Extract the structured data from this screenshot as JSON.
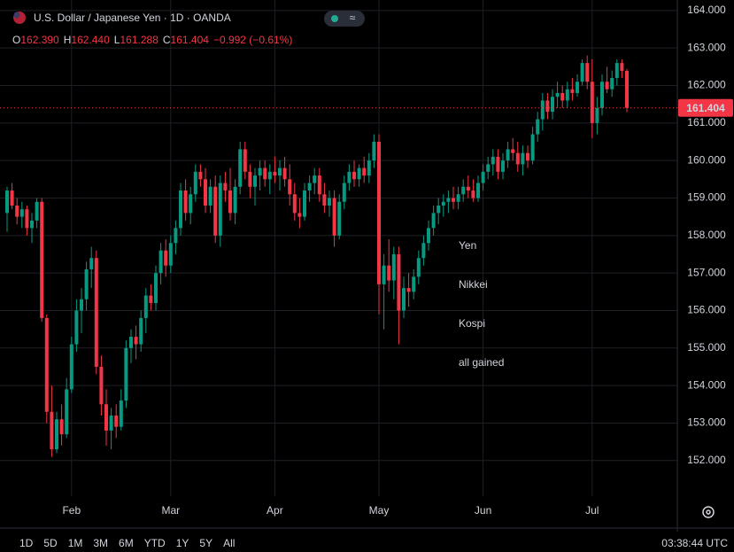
{
  "header": {
    "title": "U.S. Dollar / Japanese Yen · 1D · OANDA",
    "ohlc": [
      {
        "key": "O",
        "value": "162.390"
      },
      {
        "key": "H",
        "value": "162.440"
      },
      {
        "key": "L",
        "value": "161.288"
      },
      {
        "key": "C",
        "value": "161.404"
      }
    ],
    "change": "−0.992 (−0.61%)"
  },
  "chart_data": {
    "type": "candlestick",
    "up_color": "#089981",
    "down_color": "#f23645",
    "grid": true,
    "ylim": [
      151.05,
      164.28
    ],
    "yticks": [
      {
        "value": 152,
        "label": "152.000"
      },
      {
        "value": 153,
        "label": "153.000"
      },
      {
        "value": 154,
        "label": "154.000"
      },
      {
        "value": 155,
        "label": "155.000"
      },
      {
        "value": 156,
        "label": "156.000"
      },
      {
        "value": 157,
        "label": "157.000"
      },
      {
        "value": 158,
        "label": "158.000"
      },
      {
        "value": 159,
        "label": "159.000"
      },
      {
        "value": 160,
        "label": "160.000"
      },
      {
        "value": 161,
        "label": "161.000"
      },
      {
        "value": 162,
        "label": "162.000"
      },
      {
        "value": 163,
        "label": "163.000"
      },
      {
        "value": 164,
        "label": "164.000"
      }
    ],
    "last_price": {
      "value": 161.404,
      "label": "161.404"
    },
    "annotation": [
      "Yen",
      "Nikkei",
      "Kospi",
      "all gained"
    ],
    "annotation_color": "#e0211d",
    "categories": [
      null,
      null,
      null,
      null,
      null,
      null,
      null,
      null,
      null,
      null,
      null,
      null,
      null,
      "Feb",
      null,
      null,
      null,
      null,
      null,
      null,
      null,
      null,
      null,
      null,
      null,
      null,
      null,
      null,
      null,
      null,
      null,
      null,
      null,
      "Mar",
      null,
      null,
      null,
      null,
      null,
      null,
      null,
      null,
      null,
      null,
      null,
      null,
      null,
      null,
      null,
      null,
      null,
      null,
      null,
      null,
      "Apr",
      null,
      null,
      null,
      null,
      null,
      null,
      null,
      null,
      null,
      null,
      null,
      null,
      null,
      null,
      null,
      null,
      null,
      null,
      null,
      null,
      "May",
      null,
      null,
      null,
      null,
      null,
      null,
      null,
      null,
      null,
      null,
      null,
      null,
      null,
      null,
      null,
      null,
      null,
      null,
      null,
      null,
      "Jun",
      null,
      null,
      null,
      null,
      null,
      null,
      null,
      null,
      null,
      null,
      null,
      null,
      null,
      null,
      null,
      null,
      null,
      null,
      null,
      null,
      null,
      "Jul",
      null,
      null,
      null,
      null,
      null,
      null,
      null
    ],
    "open": [
      158.6,
      159.2,
      158.8,
      158.5,
      158.7,
      158.2,
      158.4,
      158.9,
      155.8,
      153.3,
      152.3,
      153.1,
      152.7,
      153.9,
      155.1,
      156.0,
      156.3,
      157.1,
      157.4,
      154.5,
      153.5,
      152.8,
      153.2,
      152.9,
      153.6,
      155.0,
      155.3,
      155.1,
      155.8,
      156.4,
      156.2,
      157.0,
      157.6,
      157.2,
      157.8,
      158.2,
      159.2,
      158.6,
      159.1,
      159.7,
      159.5,
      158.8,
      159.3,
      158.0,
      159.4,
      159.2,
      158.6,
      159.3,
      160.3,
      159.7,
      159.3,
      159.6,
      159.8,
      159.5,
      159.7,
      159.6,
      159.8,
      159.5,
      159.1,
      158.6,
      158.5,
      159.2,
      159.4,
      159.6,
      159.1,
      158.8,
      159.0,
      158.0,
      158.9,
      159.4,
      159.7,
      159.5,
      159.8,
      159.6,
      160.0,
      160.5,
      156.7,
      157.2,
      156.8,
      157.5,
      156.0,
      156.6,
      156.5,
      156.9,
      157.4,
      157.8,
      158.2,
      158.6,
      158.8,
      158.9,
      159.0,
      158.9,
      159.1,
      159.3,
      159.2,
      159.0,
      159.4,
      159.7,
      159.9,
      160.1,
      159.7,
      160.0,
      160.3,
      160.2,
      159.9,
      160.2,
      160.0,
      160.7,
      161.1,
      161.6,
      161.3,
      161.7,
      161.8,
      161.6,
      161.9,
      161.8,
      162.1,
      162.6,
      162.1,
      161.0,
      161.4,
      162.1,
      161.9,
      162.2,
      162.6,
      162.39
    ],
    "high": [
      159.3,
      159.4,
      159.0,
      158.9,
      158.8,
      158.6,
      159.0,
      159.0,
      155.9,
      154.0,
      153.3,
      153.5,
      154.2,
      155.3,
      156.3,
      156.6,
      157.3,
      157.7,
      157.6,
      154.8,
      153.9,
      153.4,
      153.5,
      153.9,
      155.2,
      155.5,
      155.6,
      156.0,
      156.6,
      156.7,
      157.2,
      157.8,
      157.9,
      158.0,
      158.4,
      159.4,
      159.5,
      159.3,
      159.9,
      159.9,
      159.8,
      159.5,
      159.6,
      159.6,
      159.7,
      159.8,
      159.5,
      160.5,
      160.5,
      159.9,
      159.8,
      160.0,
      160.0,
      159.9,
      160.1,
      160.0,
      160.1,
      159.9,
      159.4,
      159.0,
      159.4,
      159.6,
      159.8,
      159.8,
      159.4,
      159.2,
      159.2,
      159.1,
      159.6,
      159.9,
      160.0,
      159.9,
      160.1,
      160.2,
      160.7,
      160.7,
      157.5,
      157.9,
      157.7,
      157.7,
      156.9,
      157.0,
      157.1,
      157.6,
      158.0,
      158.4,
      158.8,
      159.0,
      159.1,
      159.2,
      159.3,
      159.3,
      159.5,
      159.6,
      159.5,
      159.6,
      159.9,
      160.1,
      160.3,
      160.3,
      160.2,
      160.5,
      160.6,
      160.5,
      160.4,
      160.4,
      160.9,
      161.3,
      161.8,
      161.8,
      161.9,
      162.1,
      162.0,
      162.1,
      162.2,
      162.3,
      162.7,
      162.8,
      162.7,
      161.7,
      162.3,
      162.5,
      162.4,
      162.7,
      162.7,
      162.44
    ],
    "low": [
      158.1,
      158.7,
      158.3,
      158.2,
      158.0,
      157.8,
      158.2,
      155.7,
      153.0,
      152.1,
      152.2,
      152.4,
      152.6,
      153.8,
      154.9,
      155.4,
      156.0,
      156.6,
      154.3,
      153.2,
      152.4,
      152.3,
      152.6,
      152.8,
      153.4,
      154.6,
      154.7,
      154.9,
      155.4,
      156.0,
      156.0,
      156.7,
      156.9,
      157.0,
      157.5,
      158.0,
      158.4,
      158.3,
      158.9,
      159.3,
      158.6,
      158.6,
      157.8,
      157.7,
      158.9,
      158.4,
      158.3,
      159.1,
      159.5,
      159.0,
      158.8,
      159.2,
      159.3,
      159.1,
      159.4,
      159.2,
      159.3,
      158.8,
      158.4,
      158.2,
      158.4,
      158.9,
      159.1,
      158.9,
      158.6,
      158.5,
      157.7,
      157.9,
      158.7,
      159.2,
      159.3,
      159.3,
      159.4,
      159.4,
      159.8,
      155.9,
      155.5,
      156.5,
      156.3,
      155.1,
      155.8,
      156.1,
      156.3,
      156.7,
      157.2,
      157.6,
      158.0,
      158.3,
      158.5,
      158.6,
      158.7,
      158.7,
      158.9,
      159.0,
      158.9,
      158.9,
      159.2,
      159.5,
      159.6,
      159.5,
      159.5,
      159.8,
      160.0,
      159.7,
      159.6,
      159.8,
      159.9,
      160.5,
      160.8,
      161.1,
      161.1,
      161.4,
      161.4,
      161.4,
      161.6,
      161.7,
      162.0,
      161.9,
      160.6,
      160.7,
      161.2,
      161.8,
      161.7,
      162.0,
      162.2,
      161.288
    ],
    "close": [
      159.2,
      158.8,
      158.5,
      158.7,
      158.2,
      158.4,
      158.9,
      155.8,
      153.3,
      152.3,
      153.1,
      152.7,
      153.9,
      155.1,
      156.0,
      156.3,
      157.1,
      157.4,
      154.5,
      153.5,
      152.8,
      153.2,
      152.9,
      153.6,
      155.0,
      155.3,
      155.1,
      155.8,
      156.4,
      156.2,
      157.0,
      157.6,
      157.2,
      157.8,
      158.2,
      159.2,
      158.6,
      159.1,
      159.7,
      159.5,
      158.8,
      159.3,
      158.0,
      159.4,
      159.2,
      158.6,
      159.3,
      160.3,
      159.7,
      159.3,
      159.6,
      159.8,
      159.5,
      159.7,
      159.6,
      159.8,
      159.5,
      159.1,
      158.6,
      158.5,
      159.2,
      159.4,
      159.6,
      159.1,
      158.8,
      159.0,
      158.0,
      158.9,
      159.4,
      159.7,
      159.5,
      159.8,
      159.6,
      160.0,
      160.5,
      156.7,
      157.2,
      156.8,
      157.5,
      156.0,
      156.6,
      156.5,
      156.9,
      157.4,
      157.8,
      158.2,
      158.6,
      158.8,
      158.9,
      159.0,
      158.9,
      159.1,
      159.3,
      159.2,
      159.0,
      159.4,
      159.7,
      159.9,
      160.1,
      159.7,
      160.0,
      160.3,
      160.2,
      159.9,
      160.2,
      160.0,
      160.7,
      161.1,
      161.6,
      161.3,
      161.7,
      161.8,
      161.6,
      161.9,
      161.8,
      162.1,
      162.6,
      162.1,
      161.0,
      161.4,
      162.1,
      161.9,
      162.2,
      162.6,
      162.39,
      161.404
    ]
  },
  "toolbar": {
    "ranges": [
      "1D",
      "5D",
      "1M",
      "3M",
      "6M",
      "YTD",
      "1Y",
      "5Y",
      "All"
    ],
    "clock": "03:38:44 UTC"
  }
}
